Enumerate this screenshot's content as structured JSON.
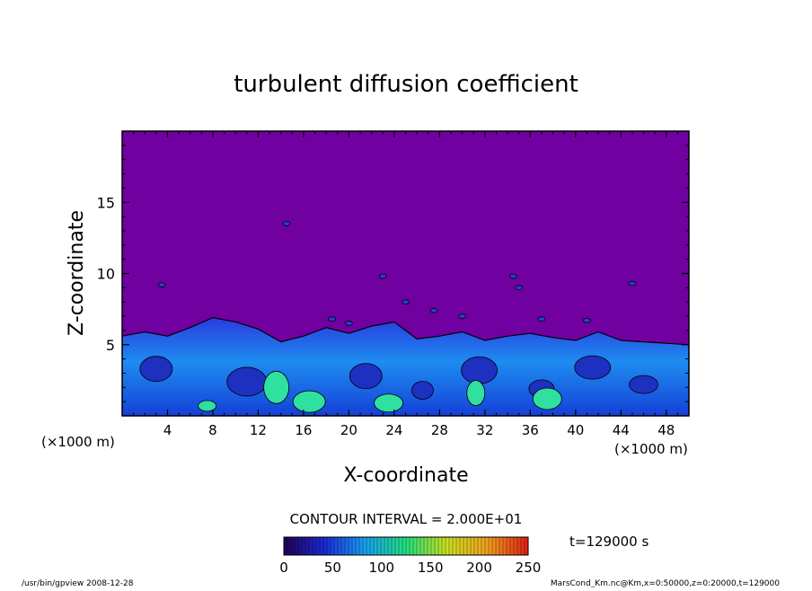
{
  "chart_data": {
    "type": "heatmap",
    "title": "turbulent diffusion coefficient",
    "xlabel": "X-coordinate",
    "ylabel": "Z-coordinate",
    "x_unit": "(×1000 m)",
    "y_unit": "(×1000 m)",
    "xlim": [
      0,
      50
    ],
    "ylim": [
      0,
      20
    ],
    "x_ticks": [
      4,
      8,
      12,
      16,
      20,
      24,
      28,
      32,
      36,
      40,
      44,
      48
    ],
    "y_ticks": [
      5,
      10,
      15
    ],
    "contour_interval": "CONTOUR INTERVAL = 2.000E+01",
    "time_label": "t=129000 s",
    "colorbar": {
      "range": [
        0,
        250
      ],
      "ticks": [
        0,
        50,
        100,
        150,
        200,
        250
      ],
      "colors": [
        "#220055",
        "#1a2ad6",
        "#18a0f0",
        "#20e080",
        "#c8e020",
        "#f0a020",
        "#e02010"
      ]
    },
    "background_color": "#7000a0",
    "turbulent_layer_top_approx": [
      [
        0,
        5.6
      ],
      [
        2,
        5.9
      ],
      [
        4,
        5.6
      ],
      [
        6,
        6.2
      ],
      [
        8,
        6.9
      ],
      [
        10,
        6.6
      ],
      [
        12,
        6.1
      ],
      [
        14,
        5.2
      ],
      [
        16,
        5.6
      ],
      [
        18,
        6.2
      ],
      [
        20,
        5.8
      ],
      [
        22,
        6.3
      ],
      [
        24,
        6.6
      ],
      [
        26,
        5.4
      ],
      [
        28,
        5.6
      ],
      [
        30,
        5.9
      ],
      [
        32,
        5.3
      ],
      [
        34,
        5.6
      ],
      [
        36,
        5.8
      ],
      [
        38,
        5.5
      ],
      [
        40,
        5.3
      ],
      [
        42,
        5.9
      ],
      [
        44,
        5.3
      ],
      [
        46,
        5.2
      ],
      [
        48,
        5.1
      ],
      [
        50,
        5.0
      ]
    ]
  },
  "footer": {
    "program": "/usr/bin/gpview   2008-12-28",
    "file": "MarsCond_Km.nc@Km,x=0:50000,z=0:20000,t=129000"
  }
}
